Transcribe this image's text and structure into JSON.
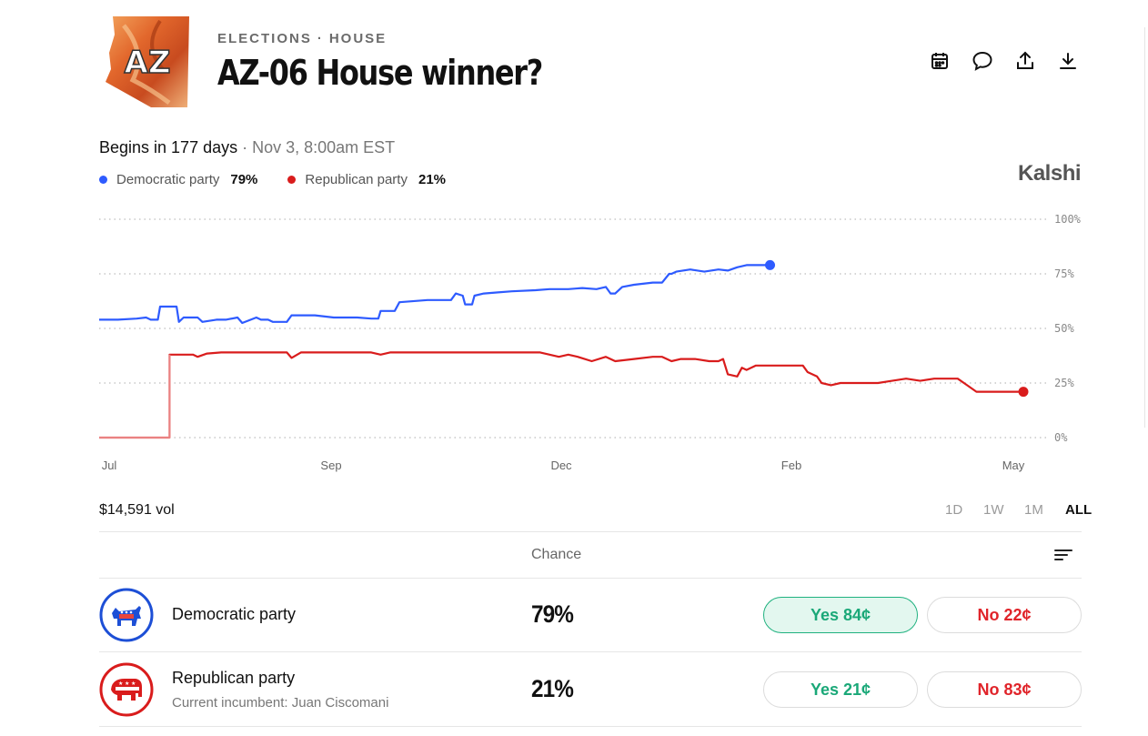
{
  "header": {
    "thumbnail_text": "AZ",
    "category": "ELECTIONS",
    "separator": "·",
    "subcategory": "HOUSE",
    "title": "AZ-06 House winner?"
  },
  "toolbar": {
    "icons": [
      "calendar-icon",
      "comment-icon",
      "share-icon",
      "download-icon"
    ]
  },
  "schedule": {
    "begins": "Begins in 177 days",
    "detail": " · Nov 3, 8:00am EST"
  },
  "legend": [
    {
      "label": "Democratic party",
      "pct": "79%",
      "color": "#2e5bff"
    },
    {
      "label": "Republican party",
      "pct": "21%",
      "color": "#d91c1c"
    }
  ],
  "brand": "Kalshi",
  "chart_data": {
    "type": "line",
    "x_ticks": [
      "Jul",
      "Sep",
      "Dec",
      "Feb",
      "May"
    ],
    "y_ticks": [
      "100%",
      "75%",
      "50%",
      "25%",
      "0%"
    ],
    "ylim": [
      0,
      100
    ],
    "grid": true,
    "series": [
      {
        "name": "Democratic party",
        "color": "#2e5bff",
        "points": [
          [
            0,
            54
          ],
          [
            0.04,
            54
          ],
          [
            0.08,
            54.5
          ],
          [
            0.1,
            55
          ],
          [
            0.11,
            54
          ],
          [
            0.125,
            54
          ],
          [
            0.13,
            60
          ],
          [
            0.165,
            60
          ],
          [
            0.17,
            53
          ],
          [
            0.18,
            55
          ],
          [
            0.21,
            55
          ],
          [
            0.22,
            53
          ],
          [
            0.25,
            54
          ],
          [
            0.27,
            54
          ],
          [
            0.295,
            55
          ],
          [
            0.305,
            52.5
          ],
          [
            0.335,
            55
          ],
          [
            0.345,
            54
          ],
          [
            0.36,
            54
          ],
          [
            0.37,
            53
          ],
          [
            0.4,
            53
          ],
          [
            0.41,
            56
          ],
          [
            0.46,
            56
          ],
          [
            0.5,
            55
          ],
          [
            0.55,
            55
          ],
          [
            0.58,
            54.5
          ],
          [
            0.595,
            54.5
          ],
          [
            0.6,
            58
          ],
          [
            0.63,
            58
          ],
          [
            0.64,
            62
          ],
          [
            0.7,
            63
          ],
          [
            0.75,
            63
          ],
          [
            0.76,
            66
          ],
          [
            0.775,
            65
          ],
          [
            0.78,
            61
          ],
          [
            0.795,
            61
          ],
          [
            0.8,
            65
          ],
          [
            0.82,
            66
          ],
          [
            0.85,
            66.5
          ],
          [
            0.88,
            67
          ],
          [
            0.93,
            67.5
          ],
          [
            0.96,
            68
          ],
          [
            1.0,
            68
          ],
          [
            1.03,
            68.5
          ],
          [
            1.06,
            68
          ],
          [
            1.08,
            69
          ],
          [
            1.09,
            66
          ],
          [
            1.1,
            66
          ],
          [
            1.115,
            69
          ],
          [
            1.14,
            70
          ],
          [
            1.18,
            71
          ],
          [
            1.2,
            71
          ],
          [
            1.215,
            75
          ],
          [
            1.22,
            75
          ],
          [
            1.23,
            76
          ],
          [
            1.26,
            77
          ],
          [
            1.29,
            76
          ],
          [
            1.32,
            77
          ],
          [
            1.34,
            76.5
          ],
          [
            1.36,
            78
          ],
          [
            1.38,
            79
          ],
          [
            1.41,
            79
          ],
          [
            1.43,
            79
          ]
        ]
      },
      {
        "name": "Republican party",
        "color": "#d91c1c",
        "points": [
          [
            0,
            0
          ],
          [
            0.15,
            0
          ],
          [
            0.15,
            38
          ],
          [
            0.2,
            38
          ],
          [
            0.21,
            37
          ],
          [
            0.23,
            38.5
          ],
          [
            0.26,
            39
          ],
          [
            0.32,
            39
          ],
          [
            0.36,
            39
          ],
          [
            0.4,
            39
          ],
          [
            0.41,
            36.5
          ],
          [
            0.43,
            39
          ],
          [
            0.5,
            39
          ],
          [
            0.55,
            39
          ],
          [
            0.58,
            39
          ],
          [
            0.6,
            38
          ],
          [
            0.62,
            39
          ],
          [
            0.68,
            39
          ],
          [
            0.72,
            39
          ],
          [
            0.78,
            39
          ],
          [
            0.84,
            39
          ],
          [
            0.9,
            39
          ],
          [
            0.94,
            39
          ],
          [
            0.98,
            37
          ],
          [
            1.0,
            38
          ],
          [
            1.02,
            37
          ],
          [
            1.05,
            35
          ],
          [
            1.08,
            37
          ],
          [
            1.1,
            35
          ],
          [
            1.14,
            36
          ],
          [
            1.18,
            37
          ],
          [
            1.2,
            37
          ],
          [
            1.22,
            35
          ],
          [
            1.24,
            36
          ],
          [
            1.27,
            36
          ],
          [
            1.3,
            35
          ],
          [
            1.32,
            35
          ],
          [
            1.33,
            36
          ],
          [
            1.34,
            29
          ],
          [
            1.36,
            28
          ],
          [
            1.37,
            32
          ],
          [
            1.38,
            31
          ],
          [
            1.4,
            33
          ],
          [
            1.43,
            33
          ],
          [
            1.47,
            33
          ],
          [
            1.5,
            33
          ],
          [
            1.51,
            30
          ],
          [
            1.53,
            28
          ],
          [
            1.54,
            25
          ],
          [
            1.56,
            24
          ],
          [
            1.58,
            25
          ],
          [
            1.62,
            25
          ],
          [
            1.66,
            25
          ],
          [
            1.69,
            26
          ],
          [
            1.72,
            27
          ],
          [
            1.75,
            26
          ],
          [
            1.78,
            27
          ],
          [
            1.81,
            27
          ],
          [
            1.83,
            27
          ],
          [
            1.85,
            24
          ],
          [
            1.87,
            21
          ],
          [
            1.95,
            21
          ],
          [
            1.97,
            21
          ]
        ]
      }
    ]
  },
  "volume": "$14,591 vol",
  "ranges": [
    "1D",
    "1W",
    "1M",
    "ALL"
  ],
  "table": {
    "chance_header": "Chance",
    "rows": [
      {
        "name": "Democratic party",
        "sub": "",
        "chance": "79%",
        "yes": "Yes 84¢",
        "no": "No 22¢",
        "color": "#1d4fd6"
      },
      {
        "name": "Republican party",
        "sub": "Current incumbent: Juan Ciscomani",
        "chance": "21%",
        "yes": "Yes 21¢",
        "no": "No 83¢",
        "color": "#d91c1c"
      }
    ]
  }
}
